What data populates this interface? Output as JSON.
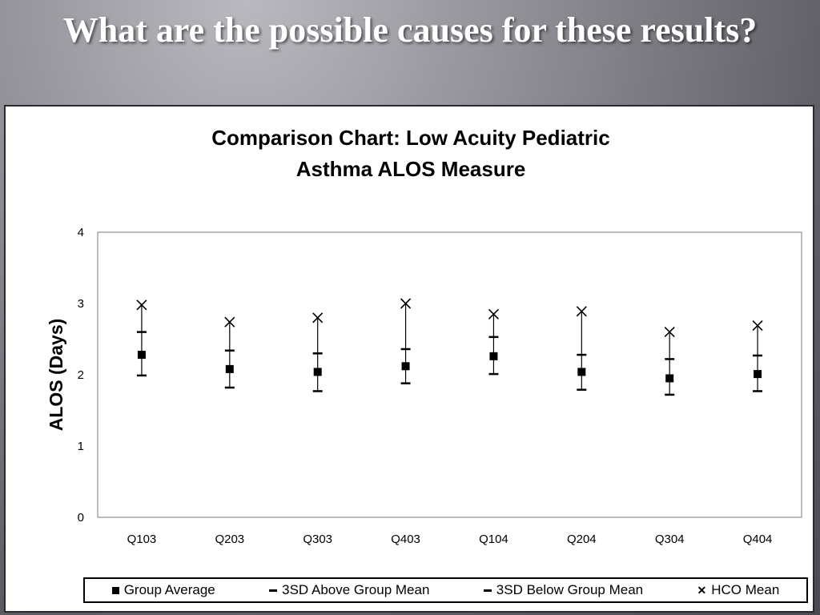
{
  "slide": {
    "title": "What are the possible causes for these results?"
  },
  "chart_data": {
    "type": "scatter",
    "title_line1": "Comparison Chart: Low Acuity Pediatric",
    "title_line2": "Asthma  ALOS Measure",
    "xlabel": "",
    "ylabel": "ALOS (Days)",
    "ylim": [
      0,
      4
    ],
    "yticks": [
      "0",
      "1",
      "2",
      "3",
      "4"
    ],
    "categories": [
      "Q103",
      "Q203",
      "Q303",
      "Q403",
      "Q104",
      "Q204",
      "Q304",
      "Q404"
    ],
    "series": [
      {
        "name": "Group Average",
        "marker": "square",
        "values": [
          2.28,
          2.08,
          2.04,
          2.12,
          2.26,
          2.04,
          1.95,
          2.01
        ]
      },
      {
        "name": "3SD Above Group Mean",
        "marker": "dash",
        "values": [
          2.6,
          2.34,
          2.3,
          2.36,
          2.53,
          2.28,
          2.22,
          2.27
        ]
      },
      {
        "name": "3SD Below  Group Mean",
        "marker": "dash",
        "values": [
          1.99,
          1.82,
          1.77,
          1.88,
          2.01,
          1.79,
          1.72,
          1.77
        ]
      },
      {
        "name": "HCO Mean",
        "marker": "x",
        "values": [
          2.98,
          2.74,
          2.8,
          3.0,
          2.85,
          2.89,
          2.6,
          2.69
        ]
      }
    ],
    "grid": false,
    "legend_position": "bottom",
    "colors": {
      "marks": "#000000",
      "plot_border": "#a6a6a6"
    }
  }
}
